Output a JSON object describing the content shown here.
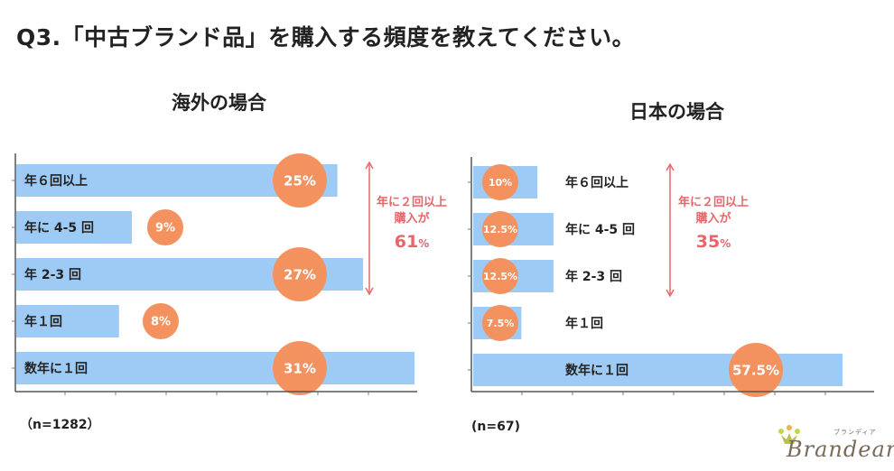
{
  "page": {
    "title": "Q3.「中古ブランド品」を購入する頻度を教えてください。"
  },
  "chart_data": [
    {
      "type": "bar",
      "orientation": "horizontal",
      "title": "海外の場合",
      "categories": [
        "年６回以上",
        "年に 4-5 回",
        "年 2-3 回",
        "年１回",
        "数年に１回"
      ],
      "values": [
        25,
        9,
        27,
        8,
        31
      ],
      "value_labels": [
        "25%",
        "9%",
        "27%",
        "8%",
        "31%"
      ],
      "xlim": [
        0,
        31
      ],
      "sample_size": "（n=1282）",
      "annotation": {
        "line1": "年に２回以上",
        "line2": "購入が",
        "value": "61",
        "unit": "%"
      },
      "bar_color": "#9ecbf5",
      "bubble_color": "#f4925f",
      "annotation_color": "#e8666a"
    },
    {
      "type": "bar",
      "orientation": "horizontal",
      "title": "日本の場合",
      "categories": [
        "年６回以上",
        "年に 4-5 回",
        "年 2-3 回",
        "年１回",
        "数年に１回"
      ],
      "values": [
        10,
        12.5,
        12.5,
        7.5,
        57.5
      ],
      "value_labels": [
        "10%",
        "12.5%",
        "12.5%",
        "7.5%",
        "57.5%"
      ],
      "xlim": [
        0,
        57.5
      ],
      "sample_size": "(n=67)",
      "annotation": {
        "line1": "年に２回以上",
        "line2": "購入が",
        "value": "35",
        "unit": "%"
      },
      "bar_color": "#9ecbf5",
      "bubble_color": "#f4925f",
      "annotation_color": "#e8666a"
    }
  ],
  "logo": {
    "brand": "Brandear",
    "kana": "ブランディア"
  }
}
